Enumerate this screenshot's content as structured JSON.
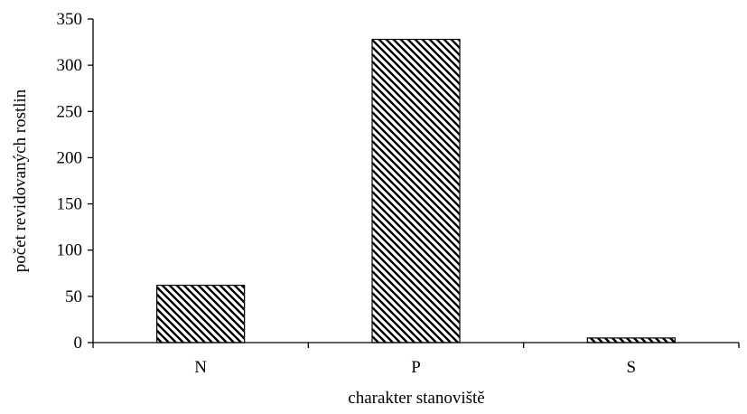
{
  "chart_data": {
    "type": "bar",
    "categories": [
      "N",
      "P",
      "S"
    ],
    "values": [
      62,
      328,
      5
    ],
    "xlabel": "charakter stanoviště",
    "ylabel": "počet revidovaných rostlin",
    "ylim": [
      0,
      350
    ],
    "yticks": [
      "0",
      "50",
      "100",
      "150",
      "200",
      "250",
      "300",
      "350"
    ],
    "grid": false,
    "legend": "none",
    "bar_fill": "diagonal-hatch",
    "colors": {
      "bar_stroke": "#000000",
      "hatch": "#000000",
      "background": "#ffffff"
    }
  }
}
